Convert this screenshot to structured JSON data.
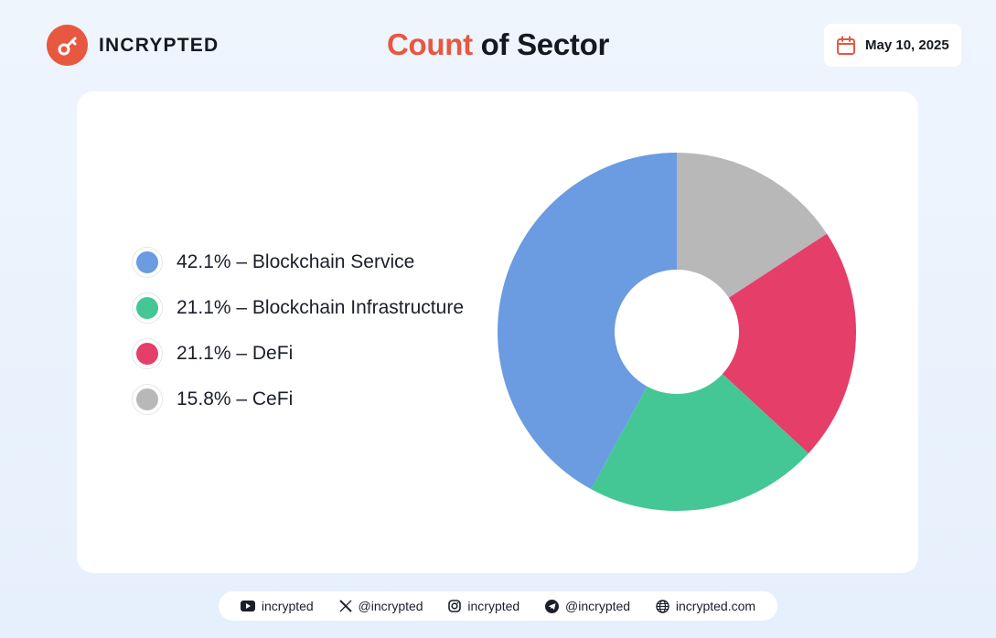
{
  "brand": {
    "name": "INCRYPTED",
    "color": "#e8573f"
  },
  "header": {
    "title_accent": "Count",
    "title_rest": " of Sector",
    "date": "May 10, 2025"
  },
  "legend": {
    "items": [
      {
        "label": "42.1% – Blockchain Service",
        "color": "#6b9be1"
      },
      {
        "label": "21.1% – Blockchain Infrastructure",
        "color": "#45c795"
      },
      {
        "label": "21.1% – DeFi",
        "color": "#e53e69"
      },
      {
        "label": "15.8% – CeFi",
        "color": "#b8b8b8"
      }
    ]
  },
  "chart_data": {
    "type": "pie",
    "donut": true,
    "title": "Count of Sector",
    "start": "top, clockwise",
    "slices": [
      {
        "name": "CeFi",
        "value": 15.8,
        "color": "#b8b8b8"
      },
      {
        "name": "DeFi",
        "value": 21.1,
        "color": "#e53e69"
      },
      {
        "name": "Blockchain Infrastructure",
        "value": 21.1,
        "color": "#45c795"
      },
      {
        "name": "Blockchain Service",
        "value": 42.1,
        "color": "#6b9be1"
      }
    ]
  },
  "footer": {
    "links": [
      {
        "icon": "youtube-icon",
        "text": "incrypted"
      },
      {
        "icon": "x-icon",
        "text": "@incrypted"
      },
      {
        "icon": "instagram-icon",
        "text": "incrypted"
      },
      {
        "icon": "telegram-icon",
        "text": "@incrypted"
      },
      {
        "icon": "globe-icon",
        "text": "incrypted.com"
      }
    ]
  }
}
